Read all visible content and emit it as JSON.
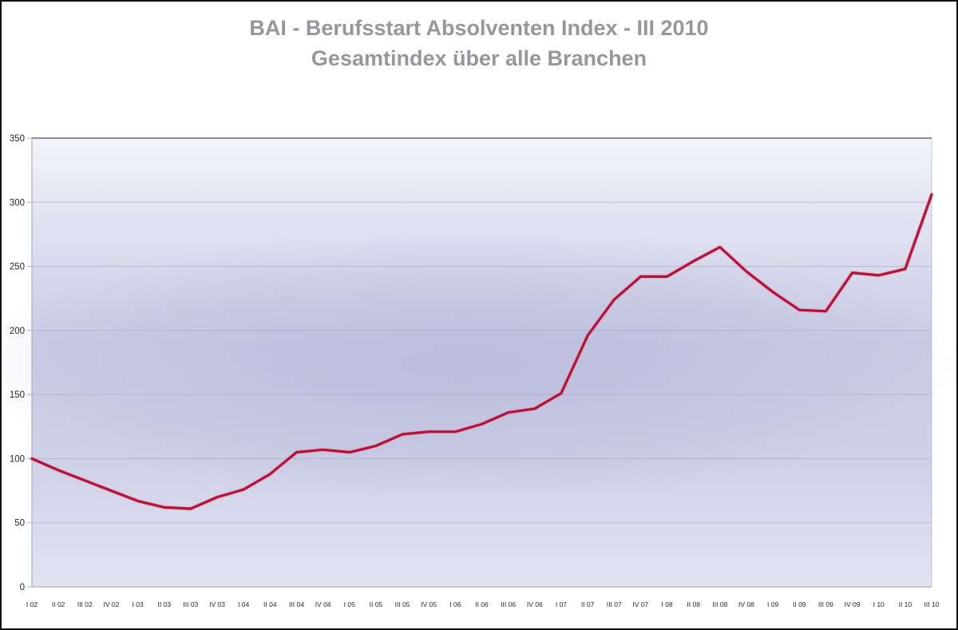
{
  "title": {
    "line1": "BAI - Berufsstart Absolventen Index - III 2010",
    "line2": "Gesamtindex über alle Branchen",
    "color": "#97979b"
  },
  "chart_data": {
    "type": "line",
    "title": "BAI - Berufsstart Absolventen Index - III 2010",
    "subtitle": "Gesamtindex über alle Branchen",
    "categories": [
      "I 02",
      "II 02",
      "III 02",
      "IV 02",
      "I 03",
      "II 03",
      "III 03",
      "IV 03",
      "I 04",
      "II 04",
      "III 04",
      "IV 04",
      "I 05",
      "II 05",
      "III 05",
      "IV 05",
      "I 06",
      "II 06",
      "III 06",
      "IV 06",
      "I 07",
      "II 07",
      "III 07",
      "IV 07",
      "I 08",
      "II 08",
      "III 08",
      "IV 08",
      "I 09",
      "II 09",
      "III 09",
      "IV 09",
      "I 10",
      "II 10",
      "III 10"
    ],
    "series": [
      {
        "name": "Gesamtindex",
        "color": "#b4123c",
        "values": [
          100,
          91,
          83,
          75,
          67,
          62,
          61,
          70,
          76,
          88,
          105,
          107,
          105,
          110,
          119,
          121,
          121,
          127,
          136,
          139,
          151,
          196,
          224,
          242,
          242,
          254,
          265,
          246,
          230,
          216,
          215,
          245,
          243,
          248,
          306
        ]
      }
    ],
    "xlabel": "",
    "ylabel": "",
    "ylim": [
      0,
      350
    ],
    "yticks": [
      0,
      50,
      100,
      150,
      200,
      250,
      300,
      350
    ],
    "grid": "horizontal",
    "legend": "none",
    "colors": {
      "line": "#b4123c",
      "grid": "#9fa2b8",
      "plot_top_border": "#7d7d88",
      "axis": "#aeaec0",
      "tick_label": "#2b2b2e",
      "plot_bg_light": "#f4f4fb",
      "plot_bg_mid": "#cacce6",
      "plot_bg_deep": "#b2b5d6",
      "plot_bg_bottom": "#e2e3f1"
    }
  }
}
